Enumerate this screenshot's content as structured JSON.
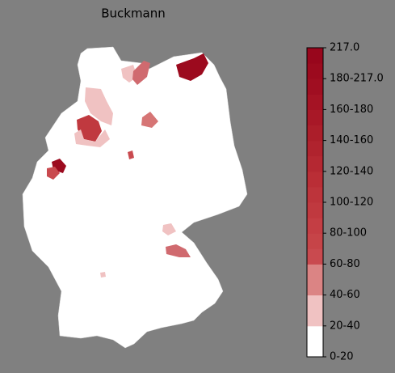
{
  "title": "Buckmann",
  "colorbar": {
    "ticks": [
      "0-20",
      "20-40",
      "40-60",
      "60-80",
      "80-100",
      "100-120",
      "120-140",
      "140-160",
      "160-180",
      "180-217.0",
      "217.0"
    ],
    "colors": [
      "#ffffff",
      "#ffffff",
      "#f0c2c2",
      "#f0c2c2",
      "#db8484",
      "#db8484",
      "#c94a4f",
      "#c64448",
      "#c43e44",
      "#c0393f",
      "#bd343b",
      "#ba2e36",
      "#b52832",
      "#b0232e",
      "#ac1e2a",
      "#a81827",
      "#a51324",
      "#a00e21",
      "#9c0a1e",
      "#98061c"
    ]
  }
}
